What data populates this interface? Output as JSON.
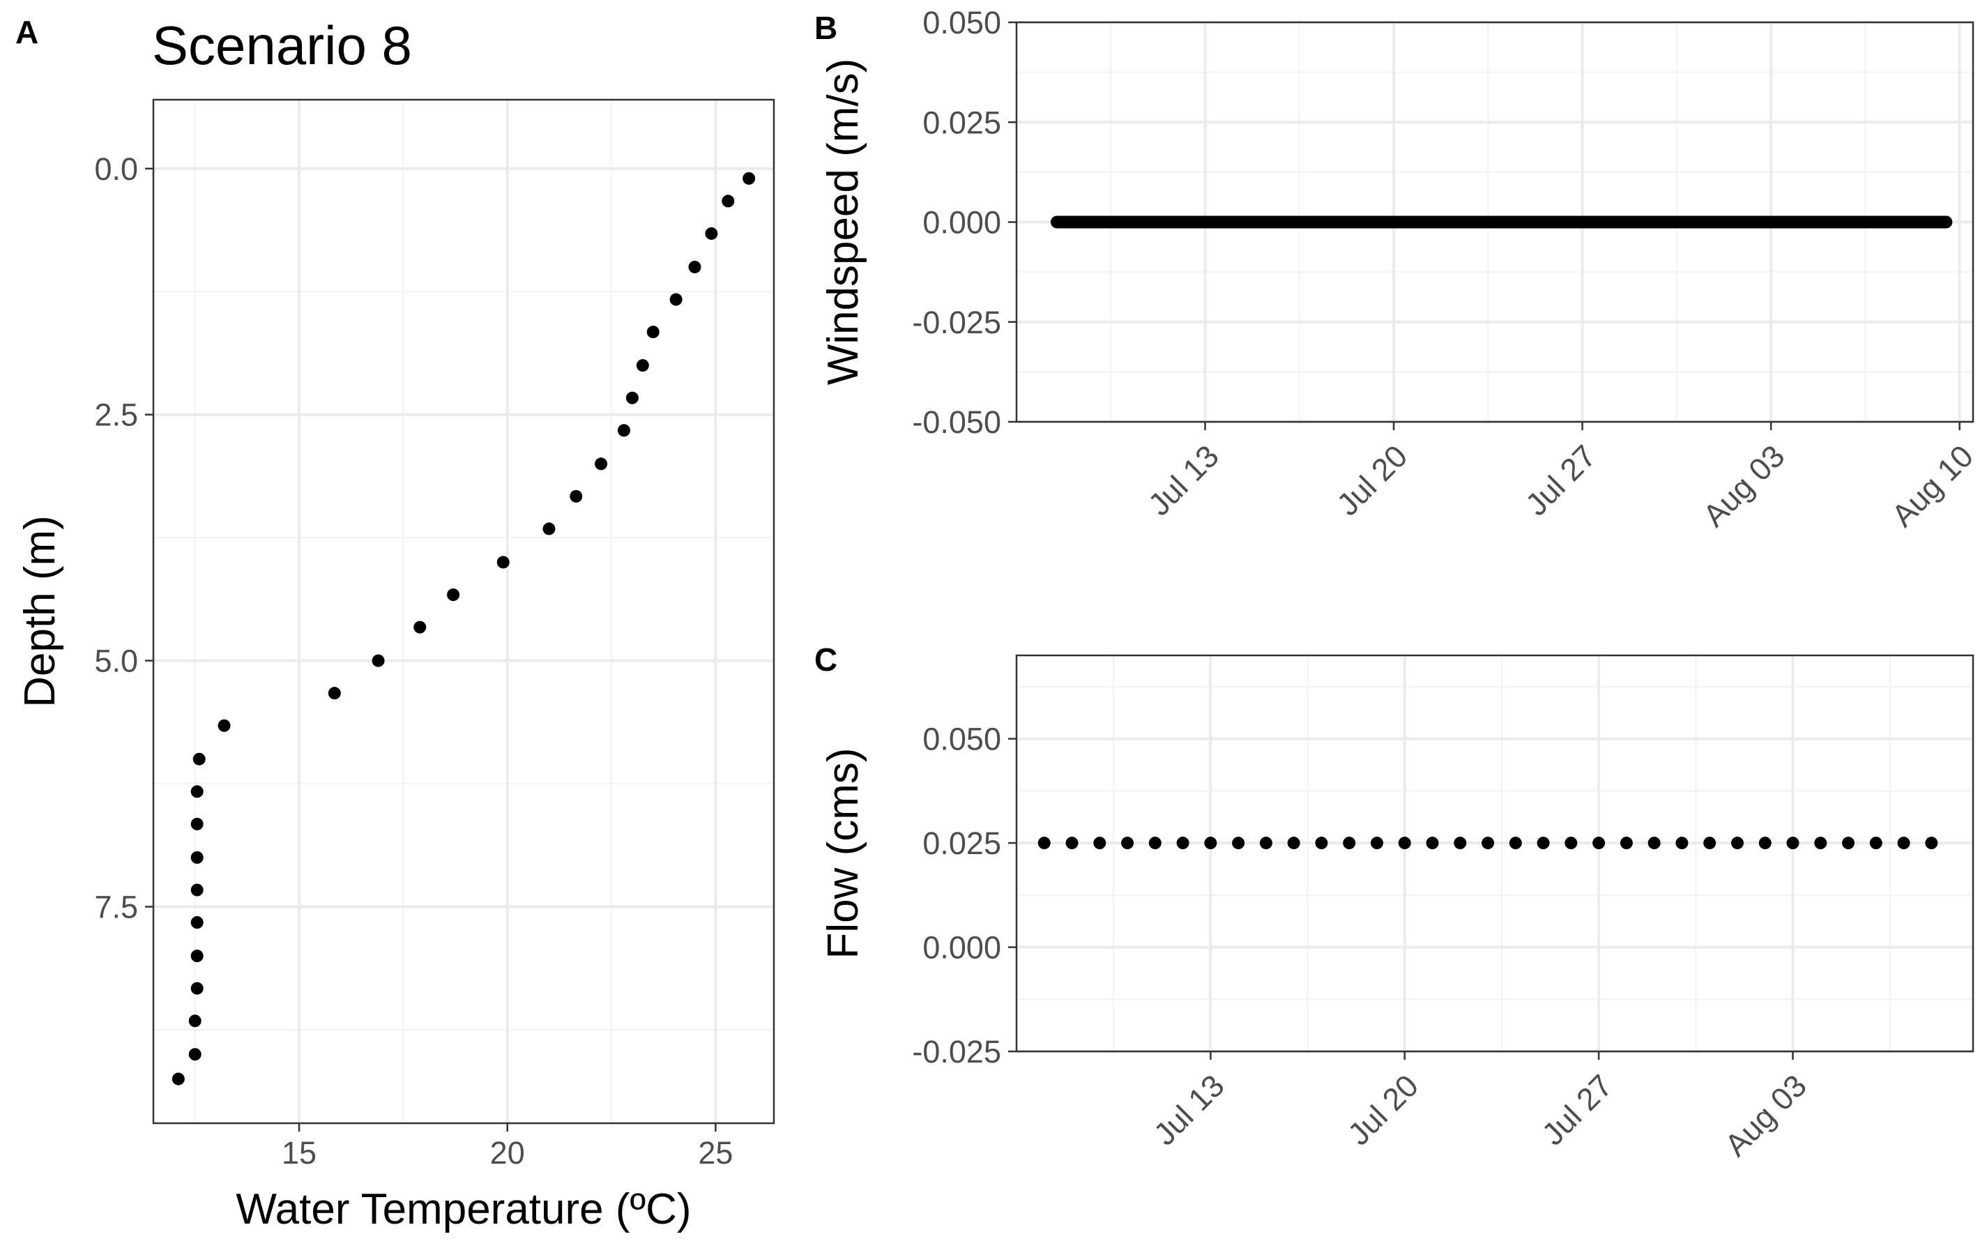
{
  "chart_data": [
    {
      "panel": "A",
      "type": "scatter",
      "title": "Scenario 8",
      "xlabel": "Water Temperature (ºC)",
      "ylabel": "Depth (m)",
      "xlim": [
        11.5,
        26.4
      ],
      "ylim": [
        9.7,
        -0.7
      ],
      "y_reversed": true,
      "xticks": [
        15,
        20,
        25
      ],
      "yticks": [
        0.0,
        2.5,
        5.0,
        7.5
      ],
      "ytick_labels": [
        "0.0",
        "2.5",
        "5.0",
        "7.5"
      ],
      "grid": true,
      "points": [
        {
          "x": 25.8,
          "y": 0.1
        },
        {
          "x": 25.3,
          "y": 0.33
        },
        {
          "x": 24.9,
          "y": 0.66
        },
        {
          "x": 24.5,
          "y": 1.0
        },
        {
          "x": 24.05,
          "y": 1.33
        },
        {
          "x": 23.5,
          "y": 1.66
        },
        {
          "x": 23.25,
          "y": 2.0
        },
        {
          "x": 23.0,
          "y": 2.33
        },
        {
          "x": 22.8,
          "y": 2.66
        },
        {
          "x": 22.25,
          "y": 3.0
        },
        {
          "x": 21.65,
          "y": 3.33
        },
        {
          "x": 21.0,
          "y": 3.66
        },
        {
          "x": 19.9,
          "y": 4.0
        },
        {
          "x": 18.7,
          "y": 4.33
        },
        {
          "x": 17.9,
          "y": 4.66
        },
        {
          "x": 16.9,
          "y": 5.0
        },
        {
          "x": 15.85,
          "y": 5.33
        },
        {
          "x": 13.2,
          "y": 5.66
        },
        {
          "x": 12.6,
          "y": 6.0
        },
        {
          "x": 12.55,
          "y": 6.33
        },
        {
          "x": 12.55,
          "y": 6.66
        },
        {
          "x": 12.55,
          "y": 7.0
        },
        {
          "x": 12.55,
          "y": 7.33
        },
        {
          "x": 12.55,
          "y": 7.66
        },
        {
          "x": 12.55,
          "y": 8.0
        },
        {
          "x": 12.55,
          "y": 8.33
        },
        {
          "x": 12.5,
          "y": 8.66
        },
        {
          "x": 12.5,
          "y": 9.0
        },
        {
          "x": 12.1,
          "y": 9.25
        }
      ]
    },
    {
      "panel": "B",
      "type": "scatter",
      "title": "",
      "xlabel": "",
      "ylabel": "Windspeed (m/s)",
      "x_type": "date",
      "xlim": [
        "2020-07-06",
        "2020-08-10T12:00"
      ],
      "ylim": [
        -0.05,
        0.05
      ],
      "xticks": [
        "2020-07-13",
        "2020-07-20",
        "2020-07-27",
        "2020-08-03",
        "2020-08-10"
      ],
      "xtick_labels": [
        "Jul 13",
        "Jul 20",
        "Jul 27",
        "Aug 03",
        "Aug 10"
      ],
      "yticks": [
        -0.05,
        -0.025,
        0.0,
        0.025,
        0.05
      ],
      "ytick_labels": [
        "-0.050",
        "-0.025",
        "0.000",
        "0.025",
        "0.050"
      ],
      "grid": true,
      "series_start": "2020-07-07T12:00",
      "series_end": "2020-08-09T12:00",
      "series_step_hours": 1,
      "value": 0.0
    },
    {
      "panel": "C",
      "type": "scatter",
      "title": "",
      "xlabel": "",
      "ylabel": "Flow (cms)",
      "x_type": "date",
      "xlim": [
        "2020-07-06",
        "2020-08-09T12:00"
      ],
      "ylim": [
        -0.025,
        0.07
      ],
      "xticks": [
        "2020-07-13",
        "2020-07-20",
        "2020-07-27",
        "2020-08-03"
      ],
      "xtick_labels": [
        "Jul 13",
        "Jul 20",
        "Jul 27",
        "Aug 03"
      ],
      "yticks": [
        -0.025,
        0.0,
        0.025,
        0.05
      ],
      "ytick_labels": [
        "-0.025",
        "0.000",
        "0.025",
        "0.050"
      ],
      "grid": true,
      "series_start": "2020-07-07",
      "series_end": "2020-08-08",
      "series_step_hours": 24,
      "value": 0.025
    }
  ],
  "panel_letters": [
    "A",
    "B",
    "C"
  ]
}
